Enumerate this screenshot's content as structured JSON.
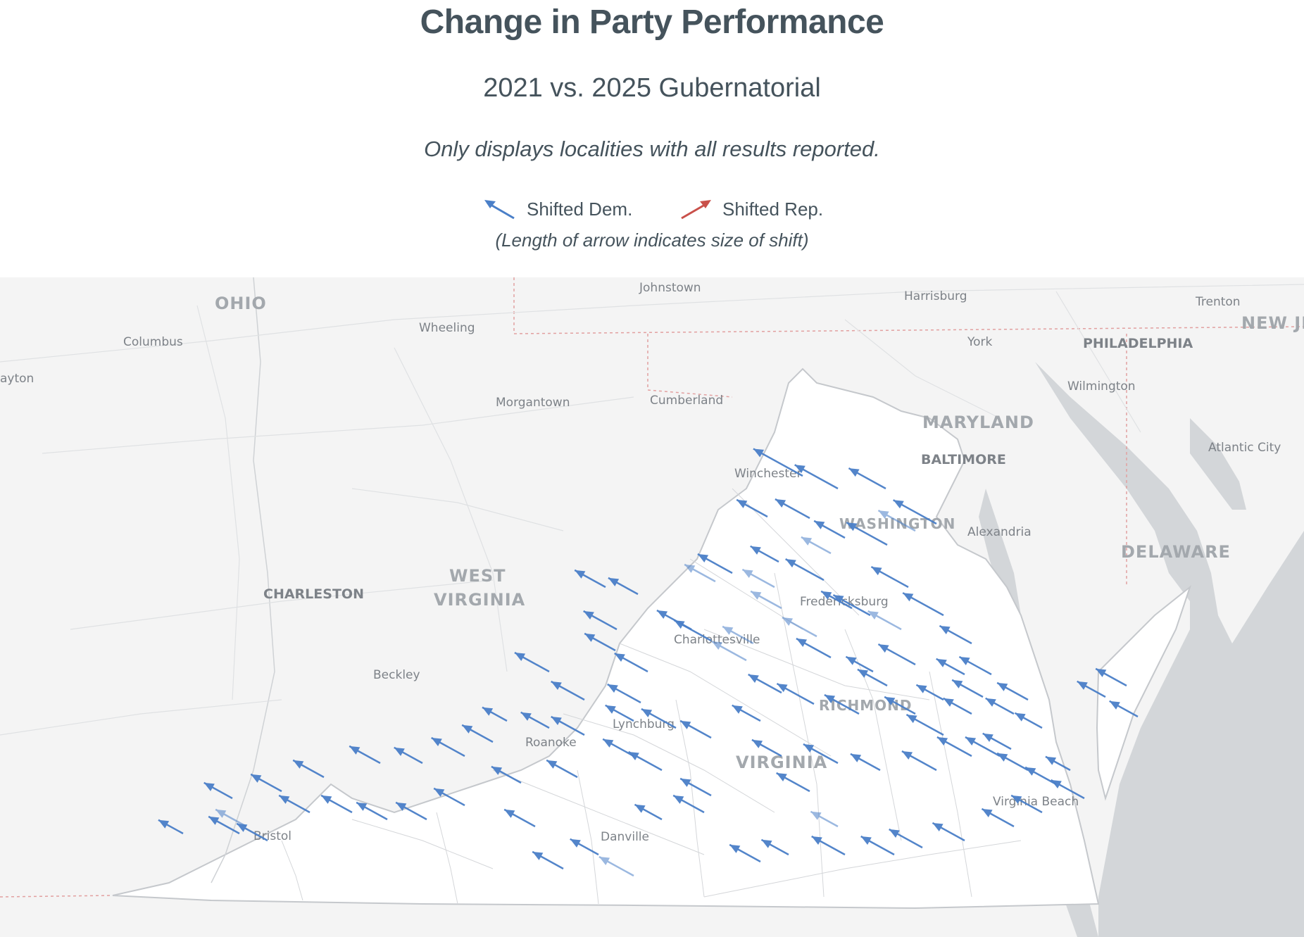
{
  "header": {
    "title": "Change in Party Performance",
    "subtitle": "2021 vs. 2025 Gubernatorial",
    "note": "Only displays localities with all results reported."
  },
  "legend": {
    "dem_label": "Shifted Dem.",
    "rep_label": "Shifted Rep.",
    "dem_color": "#4a7fc8",
    "rep_color": "#c9504a",
    "length_note": "(Length of arrow indicates size of shift)"
  },
  "map": {
    "water_color": "#d3d6d9",
    "land_color": "#f4f4f4",
    "virginia_color": "#ffffff",
    "places": {
      "johnstown": "Johnstown",
      "harrisburg": "Harrisburg",
      "trenton": "Trenton",
      "ohio": "OHIO",
      "new_jersey": "NEW JE",
      "columbus": "Columbus",
      "wheeling": "Wheeling",
      "york": "York",
      "philadelphia": "PHILADELPHIA",
      "dayton": "ayton",
      "wilmington": "Wilmington",
      "morgantown": "Morgantown",
      "cumberland": "Cumberland",
      "maryland": "MARYLAND",
      "baltimore": "BALTIMORE",
      "atlantic_city": "Atlantic City",
      "winchester": "Winchester",
      "washington": "WASHINGTON",
      "alexandria": "Alexandria",
      "delaware": "DELAWARE",
      "west": "WEST",
      "virginia_wv": "VIRGINIA",
      "charleston": "CHARLESTON",
      "fredericksburg": "Fredericksburg",
      "charlottesville": "Charlottesville",
      "beckley": "Beckley",
      "richmond": "RICHMOND",
      "lynchburg": "Lynchburg",
      "roanoke": "Roanoke",
      "virginia": "VIRGINIA",
      "virginia_beach": "Virginia Beach",
      "bristol": "Bristol",
      "danville": "Danville"
    },
    "shift_direction": "Dem"
  }
}
